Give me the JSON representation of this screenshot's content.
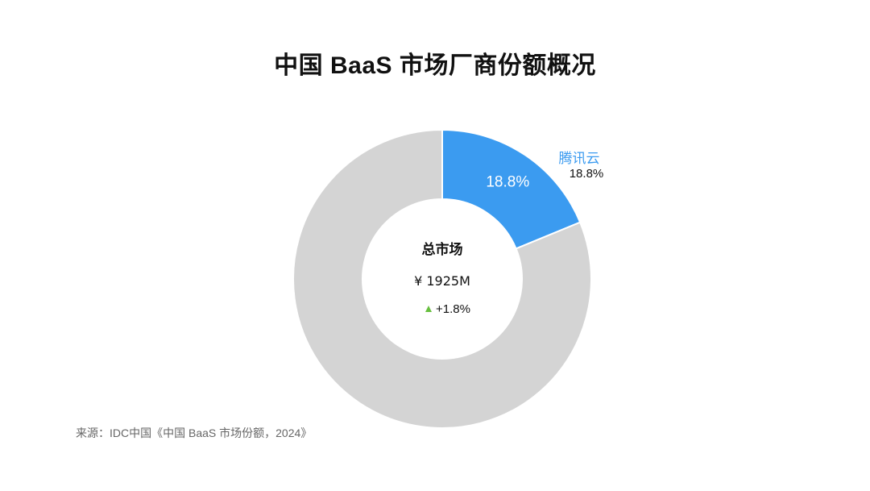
{
  "title": "中国 BaaS 市场厂商份额概况",
  "source": "来源：IDC中国《中国 BaaS 市场份额，2024》",
  "colors": {
    "highlight": "#3b9bf0",
    "rest": "#d4d4d4",
    "growth": "#67bf3f"
  },
  "chart_data": {
    "type": "pie",
    "variant": "donut",
    "title": "中国 BaaS 市场厂商份额概况",
    "slices": [
      {
        "name": "腾讯云",
        "value": 18.8,
        "label": "18.8%"
      },
      {
        "name": "",
        "value": 81.2,
        "label": ""
      }
    ],
    "center": {
      "title": "总市场",
      "total": "¥ 1925M",
      "growth": "+1.8%"
    },
    "callout": {
      "name": "腾讯云",
      "value": "18.8%"
    },
    "legend": "none"
  }
}
